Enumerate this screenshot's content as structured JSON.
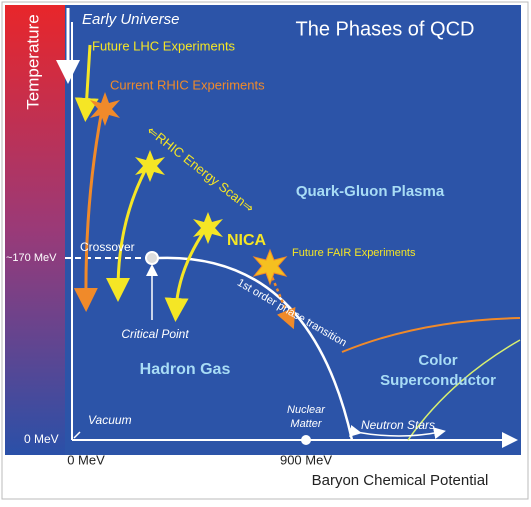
{
  "title": "The Phases of QCD",
  "axes": {
    "y_label": "Temperature",
    "x_label": "Baryon Chemical Potential",
    "y_mark": "~170 MeV",
    "y_origin": "0 MeV",
    "x_origin": "0 MeV",
    "x_mark": "900 MeV"
  },
  "labels": {
    "early_universe": "Early Universe",
    "lhc": "Future LHC Experiments",
    "rhic": "Current RHIC Experiments",
    "energy_scan": "⇐RHIC Energy Scan⇒",
    "qgp": "Quark-Gluon Plasma",
    "nica": "NICA",
    "fair": "Future FAIR Experiments",
    "crossover": "Crossover",
    "first_order": "1st order phase transition",
    "critical_point": "Critical Point",
    "hadron_gas": "Hadron Gas",
    "color_sc_1": "Color",
    "color_sc_2": "Superconductor",
    "vacuum": "Vacuum",
    "nuclear_matter_1": "Nuclear",
    "nuclear_matter_2": "Matter",
    "neutron_stars": "Neutron Stars"
  }
}
